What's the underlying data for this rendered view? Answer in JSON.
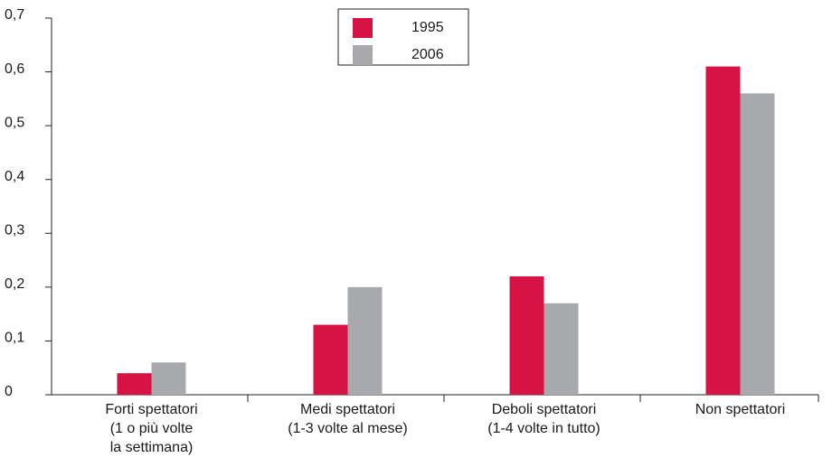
{
  "chart_data": {
    "type": "bar",
    "categories": [
      "Forti spettatori\n(1 o più volte\nla settimana)",
      "Medi spettatori\n(1-3 volte al mese)",
      "Deboli spettatori\n(1-4 volte in tutto)",
      "Non spettatori"
    ],
    "series": [
      {
        "name": "1995",
        "color": "#d71345",
        "values": [
          0.04,
          0.13,
          0.22,
          0.61
        ]
      },
      {
        "name": "2006",
        "color": "#a7a9ac",
        "values": [
          0.06,
          0.2,
          0.17,
          0.56
        ]
      }
    ],
    "ylim": [
      0,
      0.7
    ],
    "yticks": [
      0,
      {
        "value": 0.1,
        "label": "0,1"
      },
      {
        "value": 0.2,
        "label": "0,2"
      },
      {
        "value": 0.3,
        "label": "0,3"
      },
      {
        "value": 0.4,
        "label": "0,4"
      },
      {
        "value": 0.5,
        "label": "0,5"
      },
      {
        "value": 0.6,
        "label": "0,6"
      },
      {
        "value": 0.7,
        "label": "0,7"
      }
    ],
    "legend": "top-center"
  }
}
